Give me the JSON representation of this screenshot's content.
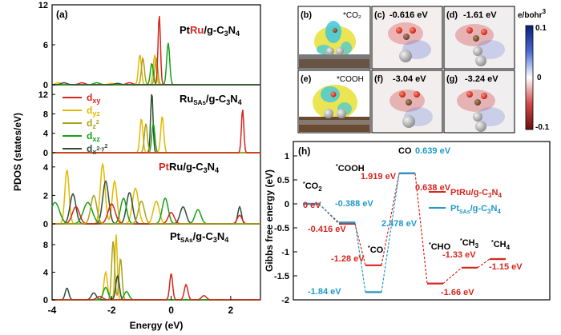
{
  "panel_labels": {
    "a": "(a)",
    "b": "(b)",
    "c": "(c)",
    "d": "(d)",
    "e": "(e)",
    "f": "(f)",
    "g": "(g)",
    "h": "(h)"
  },
  "pdos": {
    "ylabel": "PDOS (states/eV)",
    "xlabel": "Energy (eV)",
    "xticks": [
      "-4",
      "-2",
      "0",
      "2"
    ],
    "subplots": [
      {
        "title_html": "Pt<tspan fill='#d7261e'>Ru</tspan>/g-C<tspan font-size='9' dy='3'>3</tspan><tspan dy='-3'>N</tspan><tspan font-size='9' dy='3'>4</tspan>",
        "yticks": [
          "0",
          "6",
          "12"
        ]
      },
      {
        "title_html": "Ru<tspan font-size='8' dy='3'>SAs</tspan><tspan dy='-3'>/g-C</tspan><tspan font-size='9' dy='3'>3</tspan><tspan dy='-3'>N</tspan><tspan font-size='9' dy='3'>4</tspan>",
        "yticks": [
          "0",
          "4",
          "8",
          "12"
        ]
      },
      {
        "title_html": "<tspan fill='#d7261e'>Pt</tspan>Ru/g-C<tspan font-size='9' dy='3'>3</tspan><tspan dy='-3'>N</tspan><tspan font-size='9' dy='3'>4</tspan>",
        "yticks": [
          "0",
          "2",
          "4"
        ]
      },
      {
        "title_html": "Pt<tspan font-size='8' dy='3'>SAs</tspan><tspan dy='-3'>/g-C</tspan><tspan font-size='9' dy='3'>3</tspan><tspan dy='-3'>N</tspan><tspan font-size='9' dy='3'>4</tspan>",
        "yticks": [
          "0",
          "4",
          "8"
        ]
      }
    ],
    "legend": [
      {
        "html": "d<tspan font-size='9' dy='3'>xy</tspan>",
        "color": "#d7261e"
      },
      {
        "html": "d<tspan font-size='9' dy='3'>yz</tspan>",
        "color": "#e4b900"
      },
      {
        "html": "d<tspan font-size='9' dy='3'>z</tspan><tspan font-size='7' dy='-6'>2</tspan>",
        "color": "#a7a41c"
      },
      {
        "html": "d<tspan font-size='9' dy='3'>xz</tspan>",
        "color": "#16a216"
      },
      {
        "html": "d<tspan font-size='9' dy='3'>x</tspan><tspan font-size='7' dy='-5'>2</tspan><tspan font-size='7' dy='0'>-y</tspan><tspan font-size='7' dy='-3'>2</tspan>",
        "color": "#2f4f3a"
      }
    ]
  },
  "maps": {
    "b": {
      "label": "(b)",
      "species": "*CO₂"
    },
    "c": {
      "label": "(c)",
      "value": "-0.616 eV"
    },
    "d": {
      "label": "(d)",
      "value": "-1.61 eV"
    },
    "e": {
      "label": "(e)",
      "species": "*COOH"
    },
    "f": {
      "label": "(f)",
      "value": "-3.04 eV"
    },
    "g": {
      "label": "(g)",
      "value": "-3.24 eV"
    },
    "colorbar": {
      "unit_html": "e/bohr<tspan font-size='8' dy='-5'>3</tspan>",
      "max": "0.1",
      "mid": "0",
      "min": "-0.1"
    }
  },
  "chart_data": {
    "type": "line",
    "title": "",
    "ylabel": "Gibbs free energy (eV)",
    "ylim": [
      -2,
      1
    ],
    "yticks": [
      "1",
      "0.5",
      "0",
      "-0.5",
      "-1",
      "-1.5",
      "-2"
    ],
    "legend_position": "right",
    "steps": [
      "*CO2",
      "*COOH",
      "*CO",
      "CO",
      "*CHO",
      "*CH3",
      "*CH4"
    ],
    "step_labels_html": [
      "<tspan font-size='7' dy='-4'>*</tspan><tspan dy='4'>CO</tspan><tspan font-size='8' dy='3'>2</tspan>",
      "<tspan font-size='7' dy='-4'>*</tspan><tspan dy='4'>COOH</tspan>",
      "<tspan font-size='7' dy='-4'>*</tspan><tspan dy='4'>CO</tspan>",
      "CO",
      "<tspan font-size='7' dy='-4'>*</tspan><tspan dy='4'>CHO</tspan>",
      "<tspan font-size='7' dy='-4'>*</tspan><tspan dy='4'>CH</tspan><tspan font-size='8' dy='3'>3</tspan>",
      "<tspan font-size='7' dy='-4'>*</tspan><tspan dy='4'>CH</tspan><tspan font-size='8' dy='3'>4</tspan>"
    ],
    "series": [
      {
        "name": "PtRu/g-C3N4",
        "name_html": "PtRu/g-C<tspan font-size='8' dy='3'>3</tspan><tspan dy='-3'>N</tspan><tspan font-size='8' dy='3'>4</tspan>",
        "color": "#d7261e",
        "values": [
          0,
          -0.416,
          -1.28,
          0.638,
          -1.66,
          -1.33,
          -1.15
        ],
        "labels": [
          "0 eV",
          "-0.416 eV",
          "-1.28 eV",
          "0.638 eV",
          "-1.66 eV",
          "-1.33 eV",
          "-1.15 eV"
        ]
      },
      {
        "name": "PtSAs/g-C3N4",
        "name_html": "Pt<tspan font-size='7' dy='3'>SAs</tspan><tspan dy='-3'>/g-C</tspan><tspan font-size='8' dy='3'>3</tspan><tspan dy='-3'>N</tspan><tspan font-size='8' dy='3'>4</tspan>",
        "color": "#1f9ac9",
        "values": [
          0,
          -0.388,
          -1.84,
          0.639
        ],
        "labels": [
          "0 eV",
          "-0.388 eV",
          "-1.84 eV",
          "0.639 eV"
        ]
      }
    ],
    "barriers": [
      {
        "text": "1.919 eV",
        "color": "#d7261e"
      },
      {
        "text": "2.478 eV",
        "color": "#1f9ac9"
      }
    ]
  }
}
